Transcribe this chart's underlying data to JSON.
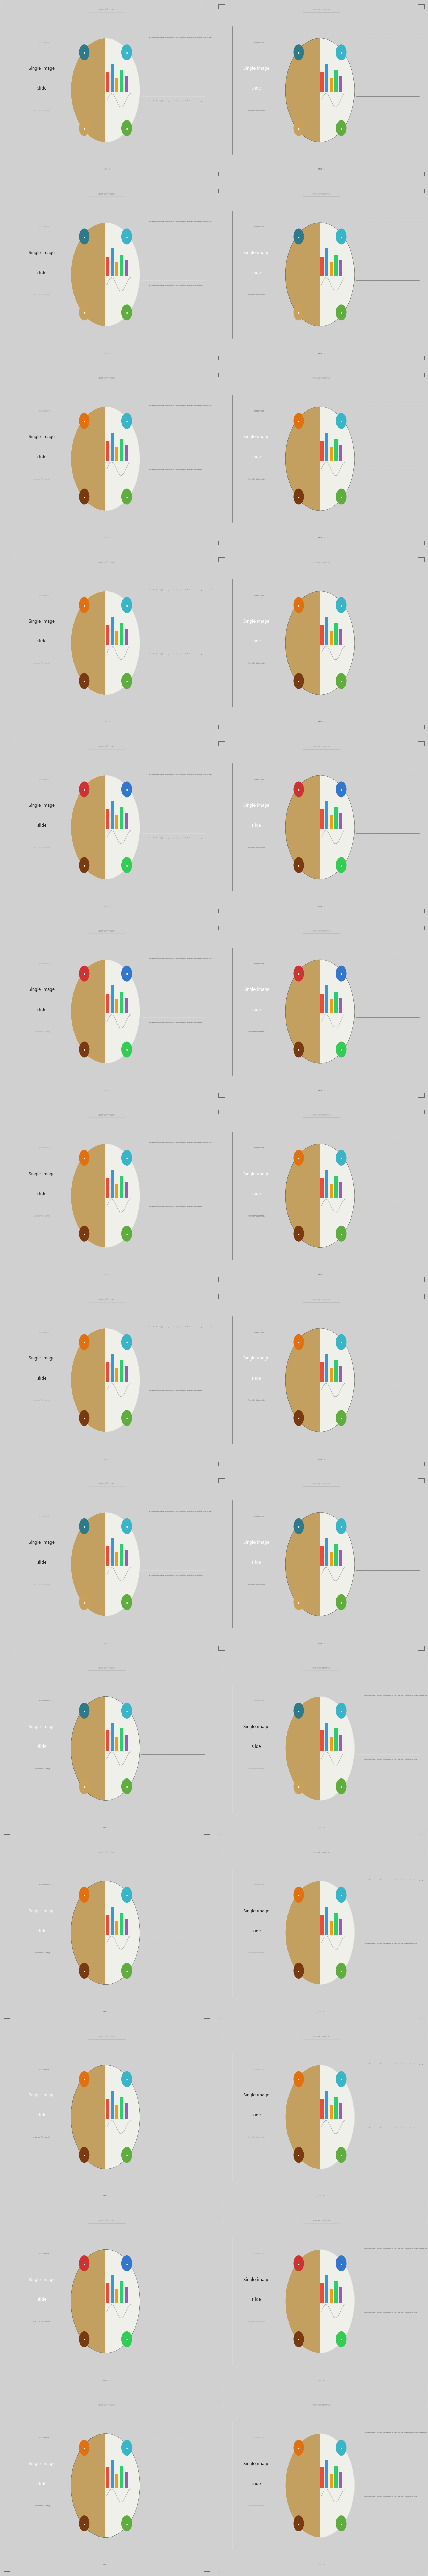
{
  "page_bg": "#d0d0d0",
  "brand_name": "monochrome",
  "slide_label_small": "MODERN TEXT",
  "slide_title_line1": "Single image",
  "slide_title_line2": "slide",
  "slide_subtitle": "A wonderful serenity",
  "page_num_prefix": "PAGE",
  "body_text_long": "A wonderful serenity has taken possession of my entire soul, like these sweet mornings of spring which I enjoy with my whole heart. I am alone, and feel the charm of existence in this spot, which was created for the bliss of souls like mine. I am so happy, my dear friend. When, while the lovely valley teems with around me, and the mendous sun strikes the upper surface of the impenetrable foliage of my trees, and but a few stray gleams steal into the inner sanctuary.",
  "body_text_short": "A wonderful serenity has taken possession of my entire soul, like these sweet mornings.",
  "light_bg": "#ffffff",
  "dark_bg": "#2a2a2a",
  "slides": [
    {
      "bg": "light",
      "icons": [
        "#2d7a8a",
        "#3ab5c8",
        "#c9a05a",
        "#5fad3e"
      ],
      "page": 1
    },
    {
      "bg": "dark",
      "icons": [
        "#2d7a8a",
        "#3ab5c8",
        "#c9a05a",
        "#5fad3e"
      ],
      "page": 1
    },
    {
      "bg": "light",
      "icons": [
        "#2d7a8a",
        "#3ab5c8",
        "#c9a05a",
        "#5fad3e"
      ],
      "page": 2
    },
    {
      "bg": "dark",
      "icons": [
        "#2d7a8a",
        "#3ab5c8",
        "#c9a05a",
        "#5fad3e"
      ],
      "page": 2
    },
    {
      "bg": "light",
      "icons": [
        "#e07010",
        "#3ab5c8",
        "#7a3a10",
        "#5fad3e"
      ],
      "page": 3
    },
    {
      "bg": "dark",
      "icons": [
        "#e07010",
        "#3ab5c8",
        "#7a3a10",
        "#5fad3e"
      ],
      "page": 3
    },
    {
      "bg": "light",
      "icons": [
        "#e07010",
        "#3ab5c8",
        "#7a3a10",
        "#5fad3e"
      ],
      "page": 4
    },
    {
      "bg": "dark",
      "icons": [
        "#e07010",
        "#3ab5c8",
        "#7a3a10",
        "#5fad3e"
      ],
      "page": 4
    },
    {
      "bg": "light",
      "icons": [
        "#cc3333",
        "#3377cc",
        "#7a3a10",
        "#33cc55"
      ],
      "page": 5
    },
    {
      "bg": "dark",
      "icons": [
        "#cc3333",
        "#3377cc",
        "#7a3a10",
        "#33cc55"
      ],
      "page": 5
    },
    {
      "bg": "light",
      "icons": [
        "#cc3333",
        "#3377cc",
        "#7a3a10",
        "#33cc55"
      ],
      "page": 6
    },
    {
      "bg": "dark",
      "icons": [
        "#cc3333",
        "#3377cc",
        "#7a3a10",
        "#33cc55"
      ],
      "page": 6
    },
    {
      "bg": "light",
      "icons": [
        "#e07010",
        "#3ab5c8",
        "#7a3a10",
        "#5fad3e"
      ],
      "page": 7
    },
    {
      "bg": "dark",
      "icons": [
        "#e07010",
        "#3ab5c8",
        "#7a3a10",
        "#5fad3e"
      ],
      "page": 7
    },
    {
      "bg": "light",
      "icons": [
        "#e07010",
        "#3ab5c8",
        "#7a3a10",
        "#5fad3e"
      ],
      "page": 8
    },
    {
      "bg": "dark",
      "icons": [
        "#e07010",
        "#3ab5c8",
        "#7a3a10",
        "#5fad3e"
      ],
      "page": 8
    },
    {
      "bg": "light",
      "icons": [
        "#2d7a8a",
        "#3ab5c8",
        "#c9a05a",
        "#5fad3e"
      ],
      "page": 9
    },
    {
      "bg": "dark",
      "icons": [
        "#2d7a8a",
        "#3ab5c8",
        "#c9a05a",
        "#5fad3e"
      ],
      "page": 9
    },
    {
      "bg": "dark",
      "icons": [
        "#2d7a8a",
        "#3ab5c8",
        "#c9a05a",
        "#5fad3e"
      ],
      "page": 10
    },
    {
      "bg": "light",
      "icons": [
        "#2d7a8a",
        "#3ab5c8",
        "#c9a05a",
        "#5fad3e"
      ],
      "page": 10
    },
    {
      "bg": "dark",
      "icons": [
        "#e07010",
        "#3ab5c8",
        "#7a3a10",
        "#5fad3e"
      ],
      "page": 11
    },
    {
      "bg": "light",
      "icons": [
        "#e07010",
        "#3ab5c8",
        "#7a3a10",
        "#5fad3e"
      ],
      "page": 11
    },
    {
      "bg": "dark",
      "icons": [
        "#e07010",
        "#3ab5c8",
        "#7a3a10",
        "#5fad3e"
      ],
      "page": 12
    },
    {
      "bg": "light",
      "icons": [
        "#e07010",
        "#3ab5c8",
        "#7a3a10",
        "#5fad3e"
      ],
      "page": 12
    },
    {
      "bg": "dark",
      "icons": [
        "#cc3333",
        "#3377cc",
        "#7a3a10",
        "#33cc55"
      ],
      "page": 13
    },
    {
      "bg": "light",
      "icons": [
        "#cc3333",
        "#3377cc",
        "#7a3a10",
        "#33cc55"
      ],
      "page": 13
    },
    {
      "bg": "dark",
      "icons": [
        "#e07010",
        "#3ab5c8",
        "#7a3a10",
        "#5fad3e"
      ],
      "page": 14
    },
    {
      "bg": "light",
      "icons": [
        "#e07010",
        "#3ab5c8",
        "#7a3a10",
        "#5fad3e"
      ],
      "page": 14
    }
  ]
}
